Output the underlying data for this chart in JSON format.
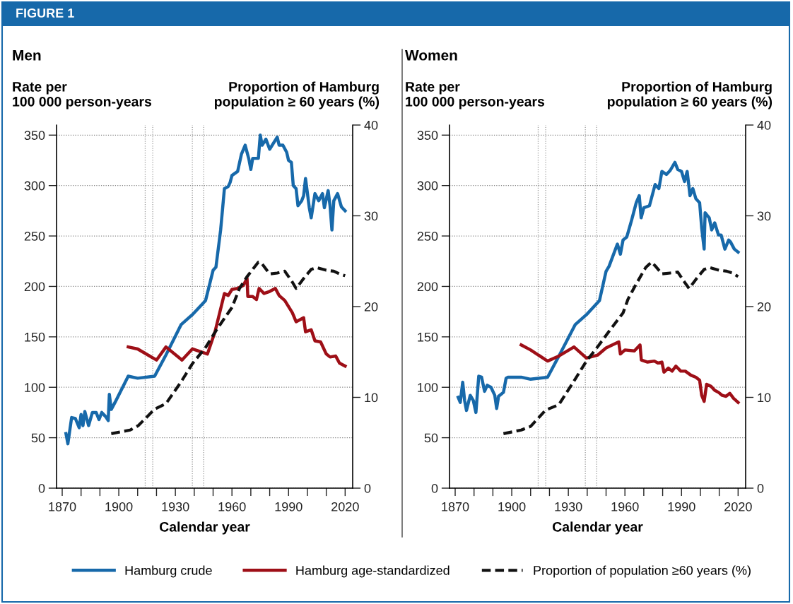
{
  "chart_data": [
    {
      "type": "line",
      "title": "Men",
      "annotations": [
        "FIGURE 1"
      ],
      "xlabel": "Calendar year",
      "ylabel": "Rate per\n100 000 person-years",
      "y2label": "Proportion of Hamburg\npopulation ≥ 60 years (%)",
      "xlim": [
        1867,
        2024
      ],
      "xticks": [
        1870,
        {
          "value": 1880,
          "label": null
        },
        {
          "value": 1890,
          "label": null
        },
        1900,
        {
          "value": 1910,
          "label": null
        },
        {
          "value": 1920,
          "label": null
        },
        1930,
        {
          "value": 1940,
          "label": null
        },
        {
          "value": 1950,
          "label": null
        },
        1960,
        {
          "value": 1970,
          "label": null
        },
        {
          "value": 1980,
          "label": null
        },
        1990,
        {
          "value": 2000,
          "label": null
        },
        {
          "value": 2010,
          "label": null
        },
        2020
      ],
      "ylim": [
        0,
        360
      ],
      "yticks": [
        0,
        50,
        100,
        150,
        200,
        250,
        300,
        350
      ],
      "y2lim": [
        0,
        40
      ],
      "y2ticks": [
        0,
        10,
        20,
        30,
        40
      ],
      "grid": "y",
      "legend": "bottom",
      "line_style": "solid",
      "ref_lines": [
        {
          "axis": "x",
          "value": 1914,
          "color": "#999999",
          "line_style": "dotted"
        },
        {
          "axis": "x",
          "value": 1918,
          "color": "#999999",
          "line_style": "dotted"
        },
        {
          "axis": "x",
          "value": 1939,
          "color": "#999999",
          "line_style": "dotted"
        },
        {
          "axis": "x",
          "value": 1945,
          "color": "#999999",
          "line_style": "dotted"
        }
      ],
      "series": [
        {
          "name": "Hamburg crude",
          "color": "#1769aa",
          "x": [
            1872,
            1873,
            1875,
            1877,
            1879,
            1880,
            1881,
            1882,
            1884,
            1886,
            1888,
            1889.5,
            1891,
            1893,
            1894.4,
            1895,
            1896,
            1898,
            1905,
            1910,
            1919,
            1925,
            1933,
            1939,
            1946,
            1950,
            1951.5,
            1954,
            1956,
            1958,
            1959,
            1960,
            1963,
            1965,
            1967,
            1969,
            1970,
            1971,
            1974,
            1975,
            1976,
            1978,
            1980,
            1984,
            1985,
            1987,
            1989,
            1990,
            1991.5,
            1992.5,
            1994,
            1995,
            1997,
            1998,
            1999,
            2001,
            2002,
            2004,
            2006,
            2008,
            2009,
            2011,
            2012,
            2013,
            2014,
            2016,
            2018,
            2020
          ],
          "values": [
            54,
            44,
            70,
            69,
            60,
            73,
            62,
            76,
            62,
            75,
            75,
            68,
            75,
            71,
            67,
            93,
            78,
            85,
            111,
            109,
            111,
            132,
            162,
            172,
            186,
            216,
            219,
            256,
            297,
            299,
            303,
            310,
            314,
            331,
            340,
            326,
            316,
            327,
            327,
            350,
            340,
            346,
            336,
            348,
            340,
            340,
            333,
            325,
            323,
            300,
            297,
            280,
            285,
            290,
            307,
            278,
            268,
            292,
            285,
            292,
            278,
            295,
            280,
            256,
            285,
            292,
            279,
            275
          ]
        },
        {
          "name": "Hamburg age-standardized",
          "color": "#9e0f17",
          "x": [
            1905,
            1910,
            1920,
            1925,
            1933.5,
            1939,
            1947,
            1951,
            1956,
            1958,
            1960,
            1963,
            1966,
            1968,
            1968.4,
            1971,
            1973,
            1974.4,
            1977,
            1980,
            1983,
            1985,
            1988,
            1992,
            1994,
            1998,
            1999,
            2002,
            2004,
            2007,
            2010,
            2012,
            2015,
            2017,
            2020
          ],
          "values": [
            140,
            138,
            127,
            140,
            127,
            138,
            133,
            155,
            193,
            191,
            197,
            198,
            201,
            208,
            190,
            190,
            187,
            198,
            193,
            195,
            198,
            191,
            186,
            174,
            165,
            169,
            155,
            157,
            146,
            145,
            133,
            130,
            131,
            124,
            121
          ]
        },
        {
          "name": "Proportion of population ≥60 years (%)",
          "color": "#111111",
          "axis": "y2",
          "line_style": "dashed",
          "x": [
            1896,
            1906,
            1910.4,
            1919,
            1925,
            1933,
            1939,
            1946,
            1952,
            1960,
            1964,
            1968,
            1974,
            1976,
            1980,
            1984,
            1988,
            1992,
            1994,
            1998,
            2002,
            2005,
            2010,
            2014,
            2017,
            2020
          ],
          "values": [
            6.0,
            6.4,
            6.9,
            8.7,
            9.3,
            11.7,
            13.7,
            15.5,
            17.5,
            19.9,
            22.0,
            23.3,
            24.9,
            24.7,
            23.6,
            23.7,
            23.9,
            22.7,
            22.0,
            23.1,
            24.1,
            24.3,
            24.0,
            23.9,
            23.6,
            23.4
          ]
        }
      ]
    },
    {
      "type": "line",
      "title": "Women",
      "xlabel": "Calendar year",
      "ylabel": "Rate per\n100 000 person-years",
      "y2label": "Proportion of Hamburg\npopulation ≥ 60 years (%)",
      "xlim": [
        1867,
        2024
      ],
      "xticks": [
        1870,
        {
          "value": 1880,
          "label": null
        },
        {
          "value": 1890,
          "label": null
        },
        1900,
        {
          "value": 1910,
          "label": null
        },
        {
          "value": 1920,
          "label": null
        },
        1930,
        {
          "value": 1940,
          "label": null
        },
        {
          "value": 1950,
          "label": null
        },
        1960,
        {
          "value": 1970,
          "label": null
        },
        {
          "value": 1980,
          "label": null
        },
        1990,
        {
          "value": 2000,
          "label": null
        },
        {
          "value": 2010,
          "label": null
        },
        2020
      ],
      "ylim": [
        0,
        360
      ],
      "yticks": [
        0,
        50,
        100,
        150,
        200,
        250,
        300,
        350
      ],
      "y2lim": [
        0,
        40
      ],
      "y2ticks": [
        0,
        10,
        20,
        30,
        40
      ],
      "grid": "y",
      "line_style": "solid",
      "ref_lines": [
        {
          "axis": "x",
          "value": 1914,
          "color": "#999999",
          "line_style": "dotted"
        },
        {
          "axis": "x",
          "value": 1918,
          "color": "#999999",
          "line_style": "dotted"
        },
        {
          "axis": "x",
          "value": 1939,
          "color": "#999999",
          "line_style": "dotted"
        },
        {
          "axis": "x",
          "value": 1945,
          "color": "#999999",
          "line_style": "dotted"
        }
      ],
      "series": [
        {
          "color": "#1769aa",
          "x": [
            1871.6,
            1872.7,
            1874,
            1875,
            1876,
            1878,
            1879.6,
            1881,
            1882.5,
            1884,
            1885.6,
            1887,
            1889,
            1891,
            1892,
            1893,
            1895.6,
            1897,
            1898,
            1905,
            1910,
            1919,
            1925,
            1933.6,
            1939.6,
            1946.5,
            1950,
            1951.6,
            1956,
            1957.6,
            1959,
            1961,
            1963.6,
            1966,
            1967.6,
            1968.6,
            1970,
            1973,
            1974,
            1976,
            1978,
            1979.6,
            1982,
            1984,
            1986.5,
            1988,
            1990,
            1991.6,
            1993,
            1994.5,
            1996,
            1997.6,
            1999.6,
            2000.7,
            2002,
            2002.5,
            2004.7,
            2006,
            2007.6,
            2009.6,
            2011,
            2013,
            2015,
            2016,
            2018,
            2020
          ],
          "values": [
            90,
            85,
            105,
            87,
            77,
            92,
            87,
            75,
            111,
            110,
            96,
            102,
            100,
            92,
            79,
            91,
            95,
            109,
            110,
            110,
            108,
            110,
            131,
            162,
            172,
            186,
            215,
            220,
            242,
            232,
            246,
            249,
            266,
            283,
            290,
            268,
            278,
            280,
            287,
            301,
            297,
            314,
            311,
            315,
            323,
            316,
            314,
            304,
            314,
            290,
            297,
            287,
            283,
            258,
            237,
            273,
            268,
            256,
            263,
            251,
            251,
            237,
            246,
            244,
            237,
            234
          ]
        },
        {
          "color": "#9e0f17",
          "x": [
            1905,
            1910,
            1919,
            1925,
            1933,
            1939.6,
            1945.6,
            1950,
            1956.7,
            1957.6,
            1960,
            1965,
            1968,
            1968.7,
            1972,
            1975.6,
            1977.6,
            1979.6,
            1980.7,
            1983,
            1985,
            1987,
            1989.6,
            1992,
            1995,
            1997.6,
            1999.6,
            2000.7,
            2002,
            2003.3,
            2005.6,
            2007.6,
            2009.6,
            2011.6,
            2013.6,
            2015.6,
            2017.6,
            2020
          ],
          "values": [
            142,
            137,
            126,
            131,
            140,
            129,
            132,
            139,
            145,
            133,
            137,
            136,
            142,
            127,
            125,
            126,
            124,
            125,
            115,
            119,
            116,
            121,
            116,
            116,
            112,
            110,
            107,
            92,
            86,
            103,
            101,
            97,
            95,
            92,
            91,
            94,
            89,
            85
          ]
        },
        {
          "color": "#111111",
          "axis": "y2",
          "line_style": "dashed",
          "x": [
            1895.6,
            1905,
            1910,
            1918,
            1925,
            1933,
            1939.6,
            1946,
            1952,
            1959,
            1961.6,
            1966,
            1971,
            1974,
            1976,
            1979.6,
            1984,
            1988,
            1991.6,
            1994,
            1998,
            2002,
            2005,
            2010,
            2014,
            2017,
            2020
          ],
          "values": [
            6.0,
            6.4,
            6.8,
            8.6,
            9.2,
            11.8,
            14.0,
            15.7,
            17.4,
            19.3,
            20.8,
            22.5,
            24.3,
            24.9,
            24.5,
            23.6,
            23.7,
            23.8,
            22.7,
            22.0,
            23.1,
            24.1,
            24.3,
            24.0,
            23.9,
            23.7,
            23.3
          ]
        }
      ]
    }
  ]
}
